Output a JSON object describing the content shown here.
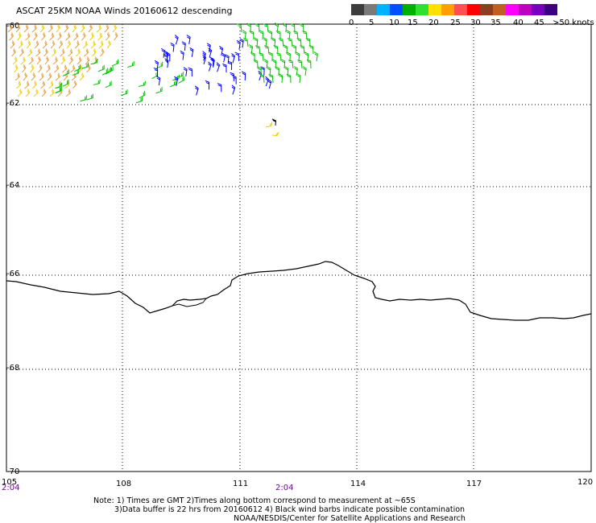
{
  "title": "ASCAT 25KM NOAA Winds 20160612 descending",
  "legend": {
    "labels": [
      "0",
      "5",
      "10",
      "15",
      "20",
      "25",
      "30",
      "35",
      "40",
      "45",
      ">50 knots"
    ],
    "colors": [
      "#3c3c3c",
      "#7a7a7a",
      "#00b2ff",
      "#0050ff",
      "#00b000",
      "#30e030",
      "#ffe000",
      "#ffa000",
      "#ff5050",
      "#ff0000",
      "#8a4020",
      "#c06020",
      "#ff00ff",
      "#c000c0",
      "#7a00c0",
      "#3c0080"
    ]
  },
  "lat_labels": [
    "-60",
    "-62",
    "-64",
    "-66",
    "-68",
    "-70"
  ],
  "lon_labels": [
    "105",
    "108",
    "111",
    "114",
    "117",
    "120"
  ],
  "time_labels": [
    "2:04",
    "2:04"
  ],
  "notes": {
    "line1": "Note: 1) Times are GMT 2)Times along bottom correspond to measurement at ~65S",
    "line2": "3)Data buffer is 22 hrs from 20160612 4) Black wind barbs indicate possible contamination",
    "line3": "NOAA/NESDIS/Center for Satellite Applications and Research"
  },
  "wind_colors": {
    "orange": "#e8a040",
    "yellow": "#f0d000",
    "green": "#00c000",
    "blue": "#0000ff",
    "black": "#000000"
  }
}
